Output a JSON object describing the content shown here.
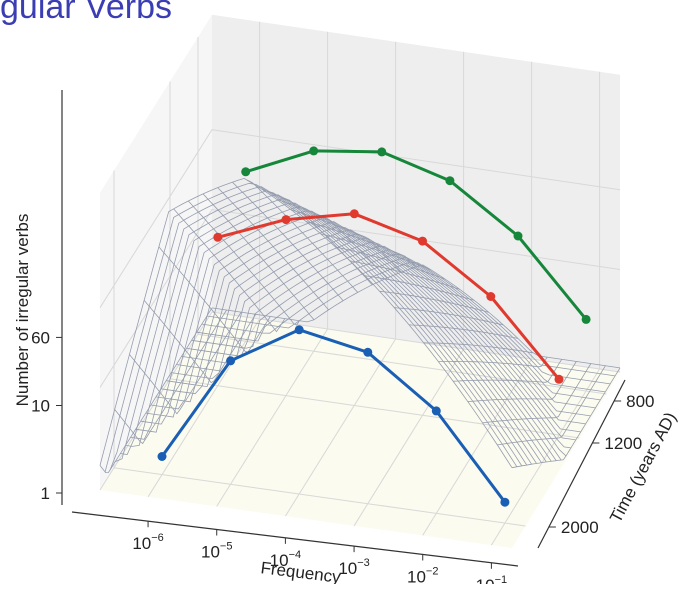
{
  "title": "gular Verbs",
  "chart_data": {
    "type": "line",
    "title": "gular Verbs",
    "xlabel": "Frequency",
    "ylabel": "Number of irregular verbs",
    "zlabel": "Time (years AD)",
    "x_scale": "log",
    "y_scale": "log",
    "x_ticks": [
      {
        "value": 1e-06,
        "base": "10",
        "exp": "−6"
      },
      {
        "value": 1e-05,
        "base": "10",
        "exp": "−5"
      },
      {
        "value": 0.0001,
        "base": "10",
        "exp": "−4"
      },
      {
        "value": 0.001,
        "base": "10",
        "exp": "−3"
      },
      {
        "value": 0.01,
        "base": "10",
        "exp": "−2"
      },
      {
        "value": 0.1,
        "base": "10",
        "exp": "−1"
      }
    ],
    "y_ticks": [
      {
        "value": 1,
        "label": "1"
      },
      {
        "value": 10,
        "label": "10"
      },
      {
        "value": 60,
        "label": "60"
      }
    ],
    "z_ticks": [
      {
        "value": 800,
        "label": "800"
      },
      {
        "value": 1200,
        "label": "1200"
      },
      {
        "value": 2000,
        "label": "2000"
      }
    ],
    "grid": true,
    "surface": "wireframe mesh",
    "series": [
      {
        "time": 2000,
        "color": "#1a5fb4",
        "x": [
          1e-06,
          1e-05,
          0.0001,
          0.001,
          0.01,
          0.1
        ],
        "y": [
          1.5,
          16,
          40,
          30,
          10,
          1.6
        ]
      },
      {
        "time": 1200,
        "color": "#e03a2f",
        "x": [
          1e-06,
          1e-05,
          0.0001,
          0.001,
          0.01,
          0.1
        ],
        "y": [
          28,
          52,
          74,
          50,
          18,
          3.5
        ]
      },
      {
        "time": 800,
        "color": "#16873a",
        "x": [
          1e-06,
          1e-05,
          0.0001,
          0.001,
          0.01,
          0.1
        ],
        "y": [
          45,
          90,
          110,
          72,
          26,
          5
        ]
      }
    ]
  }
}
